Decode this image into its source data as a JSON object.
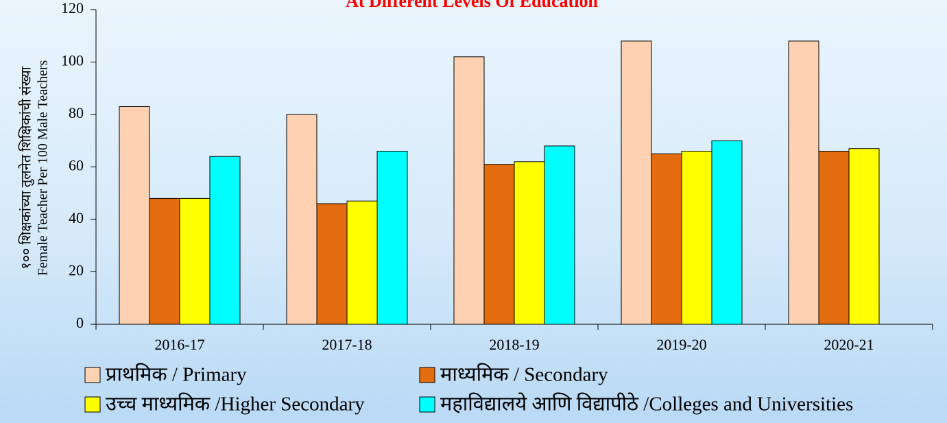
{
  "chart_data": {
    "type": "bar",
    "title": "At Different Levels Of Education",
    "y_label": [
      "१०० शिक्षकांच्या तुलनेत शिक्षिकांची संख्या",
      "Female Teacher Per 100 Male Teachers"
    ],
    "categories": [
      "2016-17",
      "2017-18",
      "2018-19",
      "2019-20",
      "2020-21"
    ],
    "series": [
      {
        "name": "प्राथमिक / Primary",
        "color": "#fdd1b1",
        "values": [
          83,
          80,
          102,
          108,
          108
        ]
      },
      {
        "name": "माध्यमिक / Secondary",
        "color": "#e36c0e",
        "values": [
          48,
          46,
          61,
          65,
          66
        ]
      },
      {
        "name": "उच्च माध्यमिक /Higher Secondary",
        "color": "#ffff00",
        "values": [
          48,
          47,
          62,
          66,
          67
        ]
      },
      {
        "name": "महाविद्यालये आणि विद्यापीठे /Colleges and Universities",
        "color": "#00ffff",
        "values": [
          64,
          66,
          68,
          70,
          null
        ]
      }
    ],
    "ylim": [
      0,
      120
    ],
    "yticks": [
      0,
      20,
      40,
      60,
      80,
      100,
      120
    ],
    "grid": false
  }
}
